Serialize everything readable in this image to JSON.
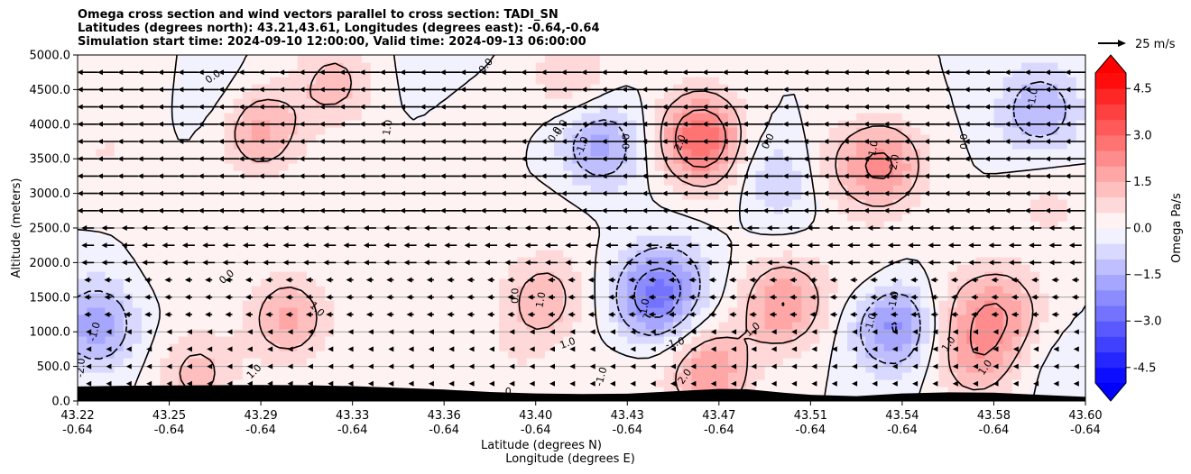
{
  "title_lines": [
    "Omega cross section and wind vectors parallel to cross section: TADI_SN",
    "Latitudes (degrees north): 43.21,43.61, Longitudes (degrees east): -0.64,-0.64",
    "Simulation start time: 2024-09-10 12:00:00, Valid time: 2024-09-13 06:00:00"
  ],
  "chart_data": {
    "type": "heatmap",
    "ylabel": "Altitude (meters)",
    "xlabel_lat": "Latitude (degrees N)",
    "xlabel_lon": "Longitude (degrees E)",
    "ylim": [
      0,
      5000
    ],
    "yticks": [
      "0.0",
      "500.0",
      "1000.0",
      "1500.0",
      "2000.0",
      "2500.0",
      "3000.0",
      "3500.0",
      "4000.0",
      "4500.0",
      "5000.0"
    ],
    "x_range_index": [
      0,
      11
    ],
    "xticks": [
      {
        "lat": "43.22",
        "lon": "-0.64"
      },
      {
        "lat": "43.25",
        "lon": "-0.64"
      },
      {
        "lat": "43.29",
        "lon": "-0.64"
      },
      {
        "lat": "43.33",
        "lon": "-0.64"
      },
      {
        "lat": "43.36",
        "lon": "-0.64"
      },
      {
        "lat": "43.40",
        "lon": "-0.64"
      },
      {
        "lat": "43.43",
        "lon": "-0.64"
      },
      {
        "lat": "43.47",
        "lon": "-0.64"
      },
      {
        "lat": "43.51",
        "lon": "-0.64"
      },
      {
        "lat": "43.54",
        "lon": "-0.64"
      },
      {
        "lat": "43.58",
        "lon": "-0.64"
      },
      {
        "lat": "43.60",
        "lon": "-0.64"
      }
    ],
    "colorbar": {
      "label": "Omega Pa/s",
      "vmin": -5.0,
      "vmax": 5.0,
      "step": 0.5,
      "ticks": [
        "-4.5",
        "−3.0",
        "−1.5",
        "0.0",
        "1.5",
        "3.0",
        "4.5"
      ],
      "tick_values": [
        -4.5,
        -3.0,
        -1.5,
        0.0,
        1.5,
        3.0,
        4.5
      ],
      "colormap": "bwr"
    },
    "wind_reference": {
      "label": "25 m/s",
      "speed": 25
    },
    "grid": "horizontal",
    "omega_cells": [
      {
        "x": 0.2,
        "z": 1100,
        "value": -1.8
      },
      {
        "x": 0.3,
        "z": 3600,
        "value": 0.5
      },
      {
        "x": 0.8,
        "z": 4700,
        "value": 0.6
      },
      {
        "x": 1.3,
        "z": 4600,
        "value": -0.6
      },
      {
        "x": 1.3,
        "z": 400,
        "value": 1.2
      },
      {
        "x": 1.1,
        "z": 2000,
        "value": 0.3
      },
      {
        "x": 2.0,
        "z": 3900,
        "value": 1.6
      },
      {
        "x": 2.3,
        "z": 1200,
        "value": 1.6
      },
      {
        "x": 2.8,
        "z": 4600,
        "value": 1.2
      },
      {
        "x": 3.4,
        "z": 2000,
        "value": 0.4
      },
      {
        "x": 4.0,
        "z": 4800,
        "value": -0.5
      },
      {
        "x": 4.1,
        "z": 1600,
        "value": 0.3
      },
      {
        "x": 4.3,
        "z": 4200,
        "value": 0.5
      },
      {
        "x": 5.1,
        "z": 1500,
        "value": 1.3
      },
      {
        "x": 5.4,
        "z": 4700,
        "value": 1.0
      },
      {
        "x": 5.7,
        "z": 3700,
        "value": -1.7
      },
      {
        "x": 5.3,
        "z": 2800,
        "value": 0.2
      },
      {
        "x": 6.0,
        "z": 400,
        "value": 0.3
      },
      {
        "x": 6.3,
        "z": 1500,
        "value": -2.5
      },
      {
        "x": 6.8,
        "z": 3800,
        "value": 3.0
      },
      {
        "x": 6.6,
        "z": 1900,
        "value": -0.5
      },
      {
        "x": 6.9,
        "z": 400,
        "value": 2.0
      },
      {
        "x": 7.2,
        "z": 3000,
        "value": 0.3
      },
      {
        "x": 7.6,
        "z": 3200,
        "value": -1.1
      },
      {
        "x": 7.7,
        "z": 1400,
        "value": 2.0
      },
      {
        "x": 8.3,
        "z": 3400,
        "value": 0.6
      },
      {
        "x": 8.6,
        "z": 1800,
        "value": 0.5
      },
      {
        "x": 8.8,
        "z": 3400,
        "value": 2.0
      },
      {
        "x": 8.9,
        "z": 1100,
        "value": -2.2
      },
      {
        "x": 9.4,
        "z": 4000,
        "value": 0.0
      },
      {
        "x": 9.6,
        "z": 1400,
        "value": 0.6
      },
      {
        "x": 9.8,
        "z": 600,
        "value": 1.5
      },
      {
        "x": 10.1,
        "z": 1300,
        "value": 1.6
      },
      {
        "x": 10.5,
        "z": 4200,
        "value": -1.5
      },
      {
        "x": 10.7,
        "z": 500,
        "value": -0.3
      },
      {
        "x": 10.6,
        "z": 2800,
        "value": 0.6
      },
      {
        "x": 4.8,
        "z": 700,
        "value": 0.4
      }
    ],
    "contour_labels": [
      {
        "text": "0.0",
        "x": 1.48,
        "z": 4680,
        "rot": -35
      },
      {
        "text": "1.0",
        "x": 3.39,
        "z": 3950,
        "rot": -80
      },
      {
        "text": "0.0",
        "x": 4.46,
        "z": 4840,
        "rot": -50
      },
      {
        "text": "0.0",
        "x": 5.21,
        "z": 3850,
        "rot": -60
      },
      {
        "text": "0.0",
        "x": 5.28,
        "z": 3950,
        "rot": -60
      },
      {
        "text": "-1.0",
        "x": 5.51,
        "z": 3680,
        "rot": -70
      },
      {
        "text": "0.0",
        "x": 5.99,
        "z": 3750,
        "rot": -90
      },
      {
        "text": "2.0",
        "x": 6.58,
        "z": 3730,
        "rot": -70
      },
      {
        "text": "0.0",
        "x": 7.54,
        "z": 3750,
        "rot": -65
      },
      {
        "text": "1.0",
        "x": 8.69,
        "z": 3650,
        "rot": -80
      },
      {
        "text": "2.0",
        "x": 8.92,
        "z": 3450,
        "rot": -80
      },
      {
        "text": "0.0",
        "x": 9.68,
        "z": 3750,
        "rot": -90
      },
      {
        "text": "-1.0",
        "x": 10.43,
        "z": 4380,
        "rot": -80
      },
      {
        "text": "0.0",
        "x": 1.63,
        "z": 1790,
        "rot": -40
      },
      {
        "text": "1.0",
        "x": 2.61,
        "z": 1320,
        "rot": 45
      },
      {
        "text": "0.0",
        "x": 4.78,
        "z": 1520,
        "rot": -90
      },
      {
        "text": "1.0",
        "x": 5.06,
        "z": 1460,
        "rot": -80
      },
      {
        "text": "1.0",
        "x": 5.35,
        "z": 830,
        "rot": -20
      },
      {
        "text": "-1.0",
        "x": 6.19,
        "z": 1340,
        "rot": -80
      },
      {
        "text": "-1.0",
        "x": 6.52,
        "z": 830,
        "rot": -15
      },
      {
        "text": "1.0",
        "x": 7.37,
        "z": 1030,
        "rot": -40
      },
      {
        "text": "-1.0",
        "x": 8.66,
        "z": 1130,
        "rot": -75
      },
      {
        "text": "-1.0",
        "x": 8.91,
        "z": 1450,
        "rot": -80
      },
      {
        "text": "1.0",
        "x": 9.51,
        "z": 820,
        "rot": -55
      },
      {
        "text": "1.0",
        "x": 9.91,
        "z": 480,
        "rot": -55
      },
      {
        "text": "-1.0",
        "x": 0.19,
        "z": 1000,
        "rot": -75
      },
      {
        "text": "-2.0",
        "x": 0.04,
        "z": 480,
        "rot": -85
      },
      {
        "text": "1.0",
        "x": 1.93,
        "z": 420,
        "rot": -45
      },
      {
        "text": "-1.0",
        "x": 5.72,
        "z": 350,
        "rot": -75
      },
      {
        "text": "2.0",
        "x": 6.63,
        "z": 350,
        "rot": -55
      },
      {
        "text": "0",
        "x": 4.7,
        "z": 130,
        "rot": 0
      }
    ],
    "terrain": [
      {
        "x": 0,
        "z": 210
      },
      {
        "x": 0.5,
        "z": 220
      },
      {
        "x": 1,
        "z": 225
      },
      {
        "x": 1.5,
        "z": 228
      },
      {
        "x": 2,
        "z": 232
      },
      {
        "x": 2.5,
        "z": 228
      },
      {
        "x": 3,
        "z": 215
      },
      {
        "x": 3.5,
        "z": 190
      },
      {
        "x": 4,
        "z": 165
      },
      {
        "x": 4.5,
        "z": 130
      },
      {
        "x": 5,
        "z": 110
      },
      {
        "x": 5.5,
        "z": 100
      },
      {
        "x": 6,
        "z": 105
      },
      {
        "x": 6.5,
        "z": 140
      },
      {
        "x": 7,
        "z": 175
      },
      {
        "x": 7.3,
        "z": 170
      },
      {
        "x": 7.7,
        "z": 120
      },
      {
        "x": 8,
        "z": 90
      },
      {
        "x": 8.5,
        "z": 70
      },
      {
        "x": 9,
        "z": 110
      },
      {
        "x": 9.5,
        "z": 125
      },
      {
        "x": 10,
        "z": 120
      },
      {
        "x": 10.5,
        "z": 90
      },
      {
        "x": 11,
        "z": 60
      }
    ]
  }
}
